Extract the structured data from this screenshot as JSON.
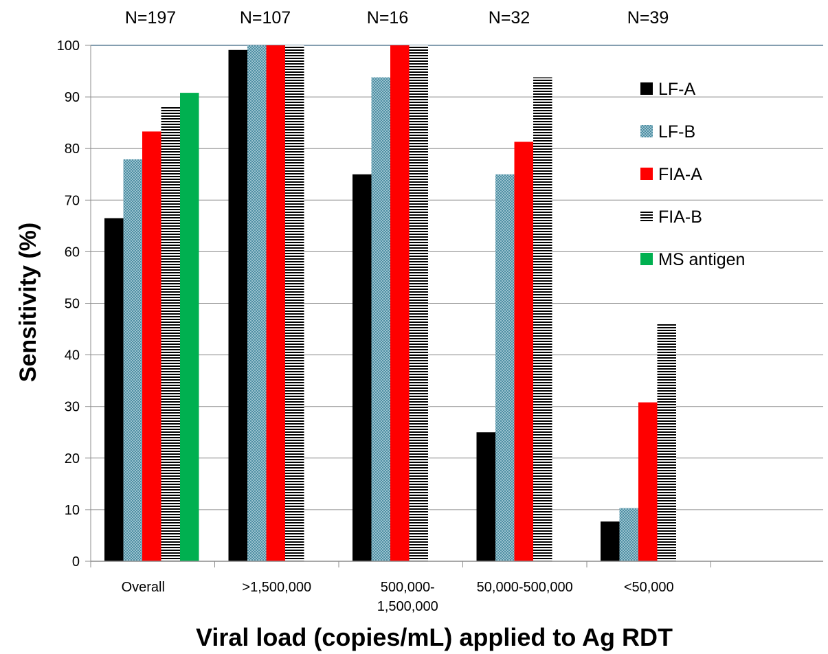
{
  "chart_data": {
    "type": "bar",
    "title": "",
    "xlabel": "Viral load (copies/mL) applied to Ag RDT",
    "ylabel": "Sensitivity (%)",
    "ylim": [
      0,
      100
    ],
    "yticks": [
      "0",
      "10",
      "20",
      "30",
      "40",
      "50",
      "60",
      "70",
      "80",
      "90",
      "100"
    ],
    "grid": "horizontal",
    "legend_position": "right",
    "categories": [
      [
        "Overall"
      ],
      [
        ">1,500,000"
      ],
      [
        "500,000-",
        "1,500,000"
      ],
      [
        "50,000-500,000"
      ],
      [
        "<50,000"
      ]
    ],
    "group_counts": [
      "N=197",
      "N=107",
      "N=16",
      "N=32",
      "N=39"
    ],
    "series": [
      {
        "name": "LF-A",
        "color": "#000000",
        "pattern": "solid",
        "values": [
          66.5,
          99.1,
          75,
          25,
          7.7
        ]
      },
      {
        "name": "LF-B",
        "color": "#7fb0c0",
        "pattern": "dotted",
        "values": [
          77.9,
          100,
          93.8,
          75,
          10.3
        ]
      },
      {
        "name": "FIA-A",
        "color": "#ff0000",
        "pattern": "solid",
        "values": [
          83.3,
          100,
          100,
          81.3,
          30.8
        ]
      },
      {
        "name": "FIA-B",
        "color": "#000000",
        "pattern": "horizontal-stripes",
        "values": [
          88.2,
          100,
          100,
          93.8,
          46.2
        ]
      },
      {
        "name": "MS antigen",
        "color": "#00b050",
        "pattern": "solid",
        "values": [
          90.8,
          null,
          null,
          null,
          null
        ]
      }
    ]
  }
}
